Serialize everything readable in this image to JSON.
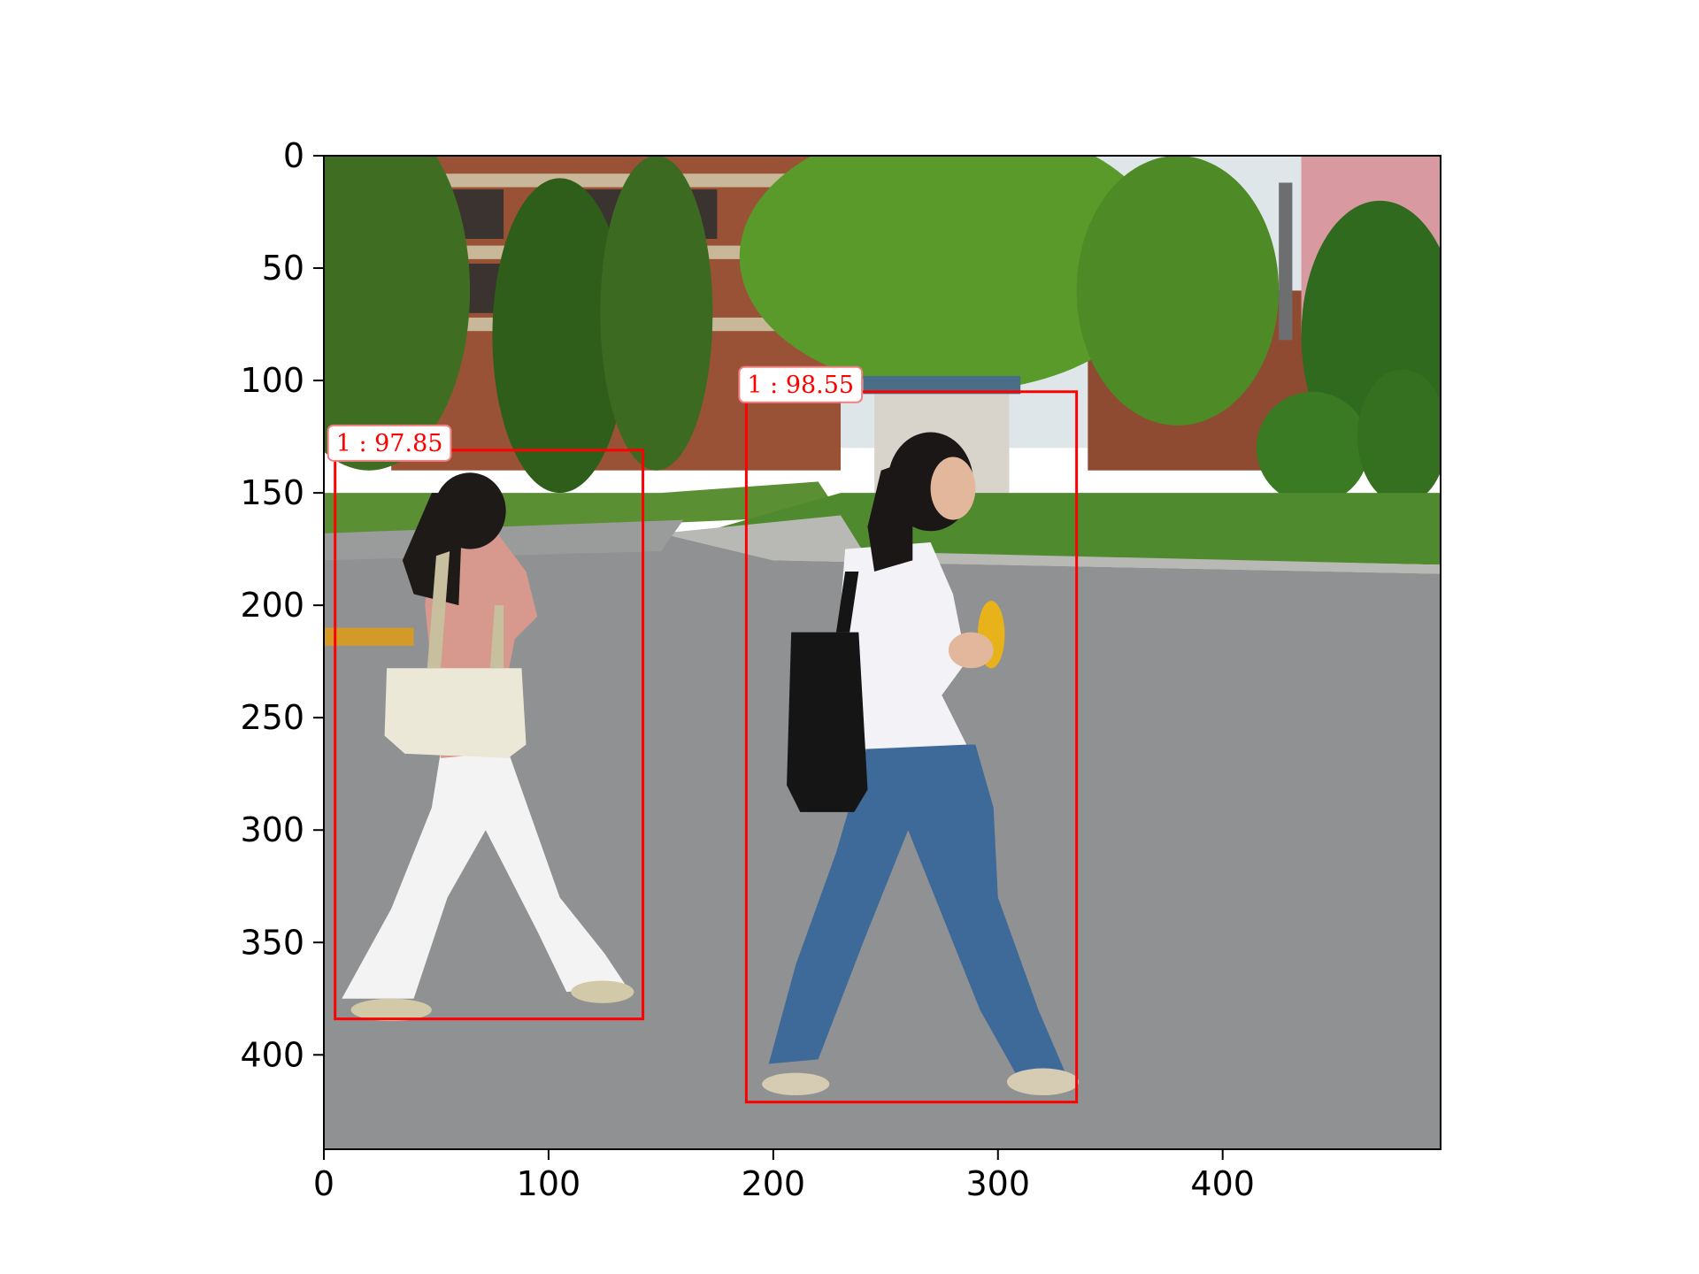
{
  "image": {
    "width": 497,
    "height": 442,
    "scene": "two-women-walking-on-campus-street",
    "colors": {
      "sky": "#dfe6ea",
      "asphalt": "#8f9192",
      "grass": "#4f8a2e",
      "trees": "#3d7a1f",
      "brick": "#9a5236",
      "pink_building": "#d89aa0",
      "detection": "#ff0000"
    }
  },
  "axes": {
    "x_ticks": [
      0,
      100,
      200,
      300,
      400
    ],
    "y_ticks": [
      0,
      50,
      100,
      150,
      200,
      250,
      300,
      350,
      400
    ],
    "xlim": [
      0,
      497
    ],
    "ylim": [
      442,
      0
    ],
    "y_inverted": true
  },
  "detections": [
    {
      "label": "1 : 97.85",
      "x1": 5,
      "y1": 131,
      "x2": 142,
      "y2": 384
    },
    {
      "label": "1 : 98.55",
      "x1": 188,
      "y1": 105,
      "x2": 335,
      "y2": 421
    }
  ]
}
